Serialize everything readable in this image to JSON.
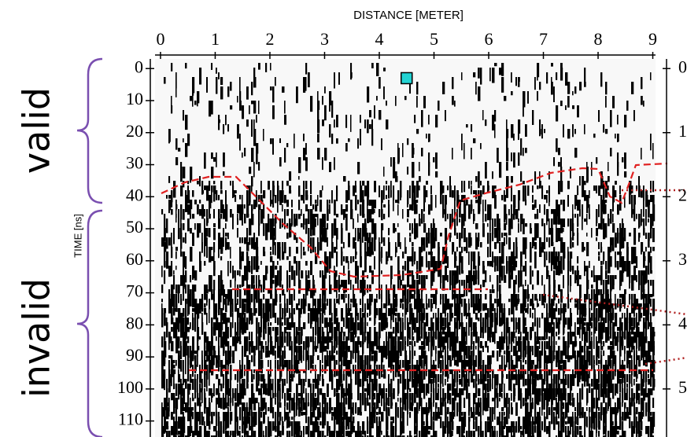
{
  "chart_data": {
    "type": "image",
    "x_label": "DISTANCE [METER]",
    "y_label": "TIME [ns]",
    "xlim": [
      -0.1,
      9.05
    ],
    "xticks": [
      0,
      1,
      2,
      3,
      4,
      5,
      6,
      7,
      8,
      9
    ],
    "ylim": [
      -3,
      115
    ],
    "yticks": [
      0,
      10,
      20,
      30,
      40,
      50,
      60,
      70,
      80,
      90,
      100,
      110
    ],
    "y2lim": [
      -0.15,
      5.75
    ],
    "y2ticks": [
      0,
      1,
      2,
      3,
      4,
      5
    ],
    "marker": {
      "x": 4.5,
      "y": 3,
      "color": "#22d3d3"
    },
    "annotations": [
      "valid",
      "invalid"
    ]
  }
}
